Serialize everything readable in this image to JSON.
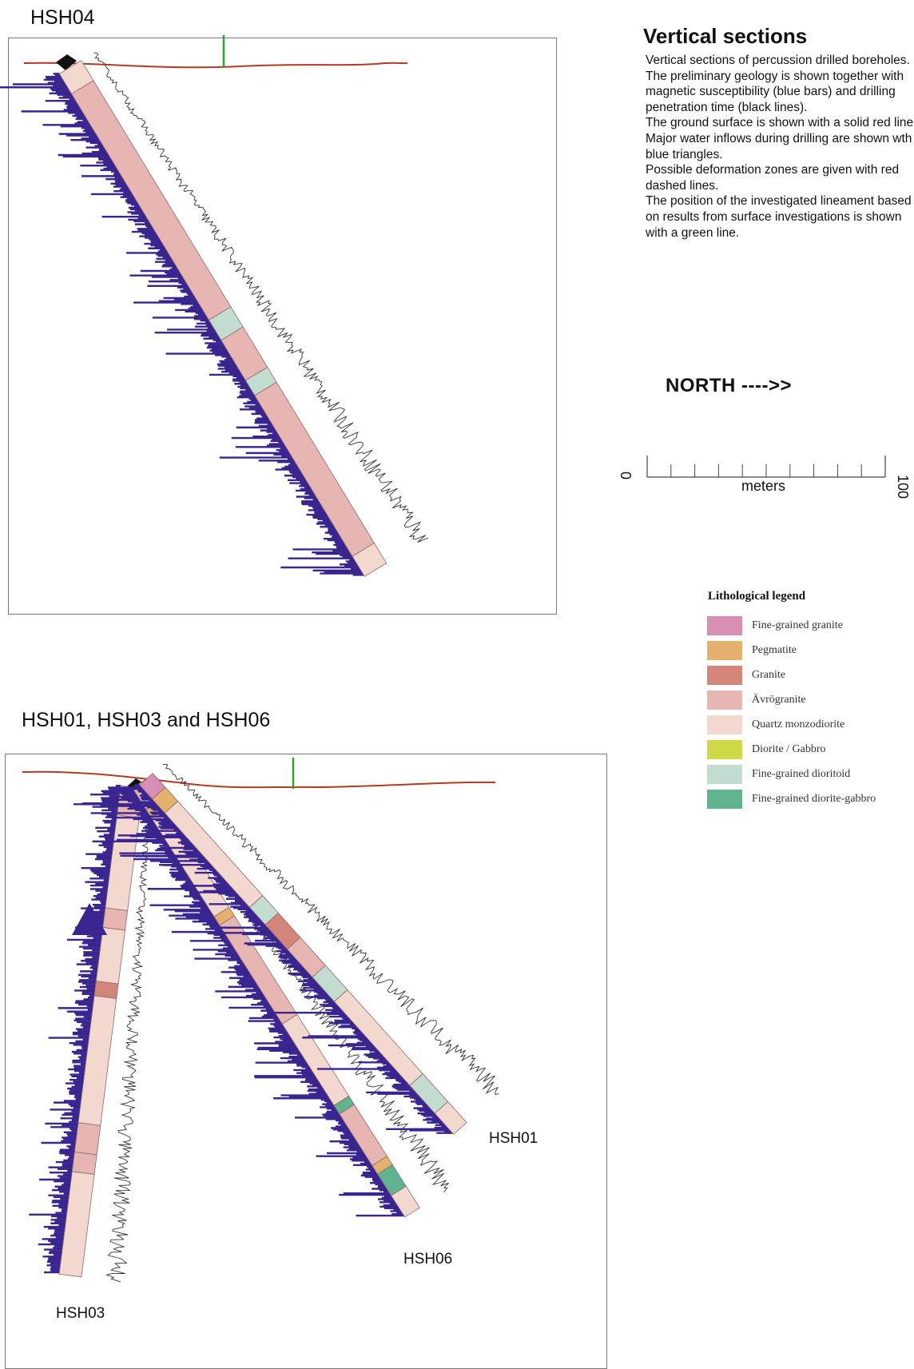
{
  "panel1": {
    "title": "HSH04"
  },
  "panel2": {
    "title": "HSH01, HSH03 and HSH06",
    "labels": {
      "hsh01": "HSH01",
      "hsh03": "HSH03",
      "hsh06": "HSH06"
    }
  },
  "info": {
    "title": "Vertical sections",
    "text": "Vertical sections of percussion drilled boreholes.\nThe preliminary geology is shown together with magnetic susceptibility (blue bars) and drilling penetration time (black lines).\nThe ground surface is shown with a solid red line.\nMajor water inflows during drilling are shown wth blue triangles.\nPossible deformation zones are given with red dashed lines.\nThe position of the investigated lineament based on results from surface investigations is shown with a green line."
  },
  "north": {
    "label": "NORTH ---->>"
  },
  "scale": {
    "start": "0",
    "end": "100",
    "unit": "meters"
  },
  "legend": {
    "title": "Lithological legend",
    "items": [
      {
        "label": "Fine-grained granite",
        "color": "#d98fb3"
      },
      {
        "label": "Pegmatite",
        "color": "#e3b06e"
      },
      {
        "label": "Granite",
        "color": "#d4857a"
      },
      {
        "label": "Ävrögranite",
        "color": "#e8b6b2"
      },
      {
        "label": "Quartz monzodiorite",
        "color": "#f2d8cf"
      },
      {
        "label": "Diorite / Gabbro",
        "color": "#cfd947"
      },
      {
        "label": "Fine-grained dioritoid",
        "color": "#c2dcd0"
      },
      {
        "label": "Fine-grained diorite-gabbro",
        "color": "#5fb48e"
      }
    ]
  },
  "colors": {
    "ground": "#b23a1e",
    "lineament": "#2aa52a",
    "magnetic": "#3a2590",
    "penetration": "#333333",
    "collar": "#111111"
  }
}
